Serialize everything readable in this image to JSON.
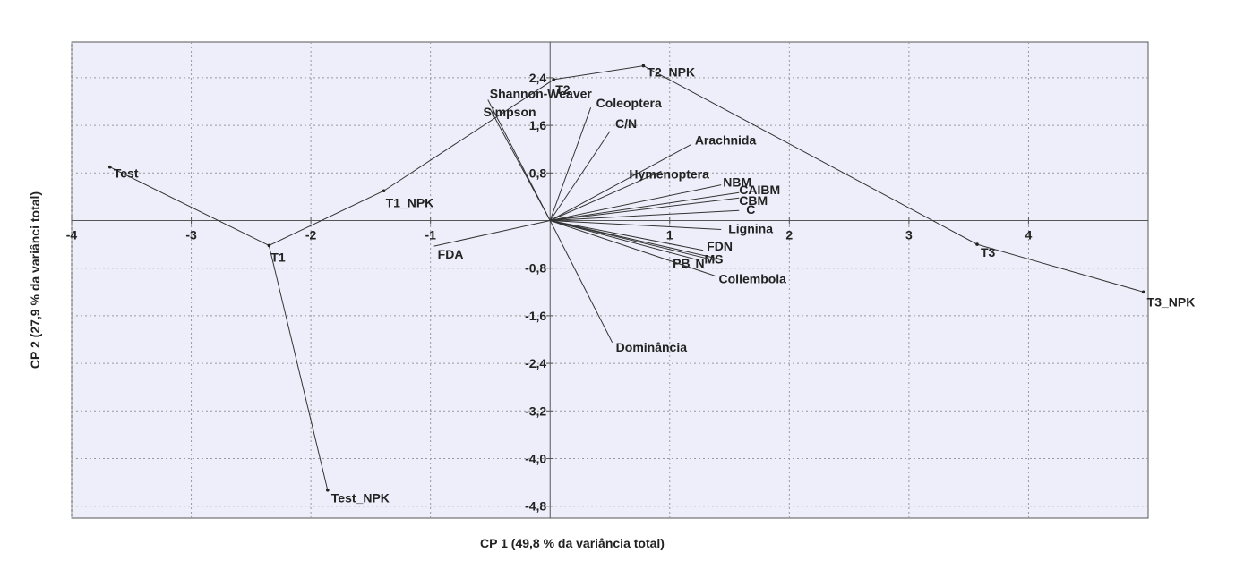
{
  "chart_data": {
    "type": "scatter",
    "subtype": "biplot",
    "title": "",
    "xlabel": "CP 1 (49,8 % da variância total)",
    "ylabel": "CP 2 (27,9 % da variânci total)",
    "xlim": [
      -4,
      5
    ],
    "ylim": [
      -5,
      3
    ],
    "x_ticks": [
      -4,
      -3,
      -2,
      -1,
      1,
      2,
      3,
      4
    ],
    "x_tick_labels": [
      "-4",
      "-3",
      "-2",
      "-1",
      "1",
      "2",
      "3",
      "4"
    ],
    "y_ticks": [
      2.4,
      1.6,
      0.8,
      -0.8,
      -1.6,
      -2.4,
      -3.2,
      -4.0,
      -4.8
    ],
    "y_tick_labels": [
      "2,4",
      "1,6",
      "0,8",
      "-0,8",
      "-1,6",
      "-2,4",
      "-3,2",
      "-4,0",
      "-4,8"
    ],
    "grid": true,
    "colors": {
      "plot_background": "#eeeefa",
      "grid": "#999999",
      "lines": "#333333",
      "text": "#222222"
    },
    "treatments": [
      {
        "name": "Test",
        "x": -3.68,
        "y": 0.9
      },
      {
        "name": "T1",
        "x": -2.35,
        "y": -0.42
      },
      {
        "name": "Test_NPK",
        "x": -1.86,
        "y": -4.53
      },
      {
        "name": "T1_NPK",
        "x": -1.39,
        "y": 0.5
      },
      {
        "name": "T2",
        "x": 0.03,
        "y": 2.37
      },
      {
        "name": "T2_NPK",
        "x": 0.78,
        "y": 2.6
      },
      {
        "name": "T3",
        "x": 3.57,
        "y": -0.4
      },
      {
        "name": "T3_NPK",
        "x": 4.96,
        "y": -1.2
      }
    ],
    "hull_order": [
      "Test",
      "T1",
      "Test_NPK",
      "T1",
      "T1_NPK",
      "T2",
      "T2_NPK",
      "T3",
      "T3_NPK"
    ],
    "variables": [
      {
        "name": "Shannon-Weaver",
        "x": -0.52,
        "y": 2.03
      },
      {
        "name": "Simpson",
        "x": -0.5,
        "y": 1.87
      },
      {
        "name": "Coleoptera",
        "x": 0.34,
        "y": 1.9
      },
      {
        "name": "C/N",
        "x": 0.5,
        "y": 1.5
      },
      {
        "name": "Arachnida",
        "x": 1.18,
        "y": 1.28
      },
      {
        "name": "Hymenoptera",
        "x": 0.93,
        "y": 0.83
      },
      {
        "name": "NBM",
        "x": 1.43,
        "y": 0.6
      },
      {
        "name": "CAIBM",
        "x": 1.58,
        "y": 0.47
      },
      {
        "name": "CBM",
        "x": 1.58,
        "y": 0.38
      },
      {
        "name": "C",
        "x": 1.58,
        "y": 0.17
      },
      {
        "name": "Lignina",
        "x": 1.43,
        "y": -0.15
      },
      {
        "name": "FDN",
        "x": 1.28,
        "y": -0.5
      },
      {
        "name": "MS",
        "x": 1.38,
        "y": -0.63
      },
      {
        "name": "PB",
        "x": 1.25,
        "y": -0.67
      },
      {
        "name": "N",
        "x": 1.38,
        "y": -0.67
      },
      {
        "name": "Collembola",
        "x": 1.38,
        "y": -0.93
      },
      {
        "name": "FDA",
        "x": -0.97,
        "y": -0.43
      },
      {
        "name": "Dominância",
        "x": 0.52,
        "y": -2.05
      }
    ]
  }
}
